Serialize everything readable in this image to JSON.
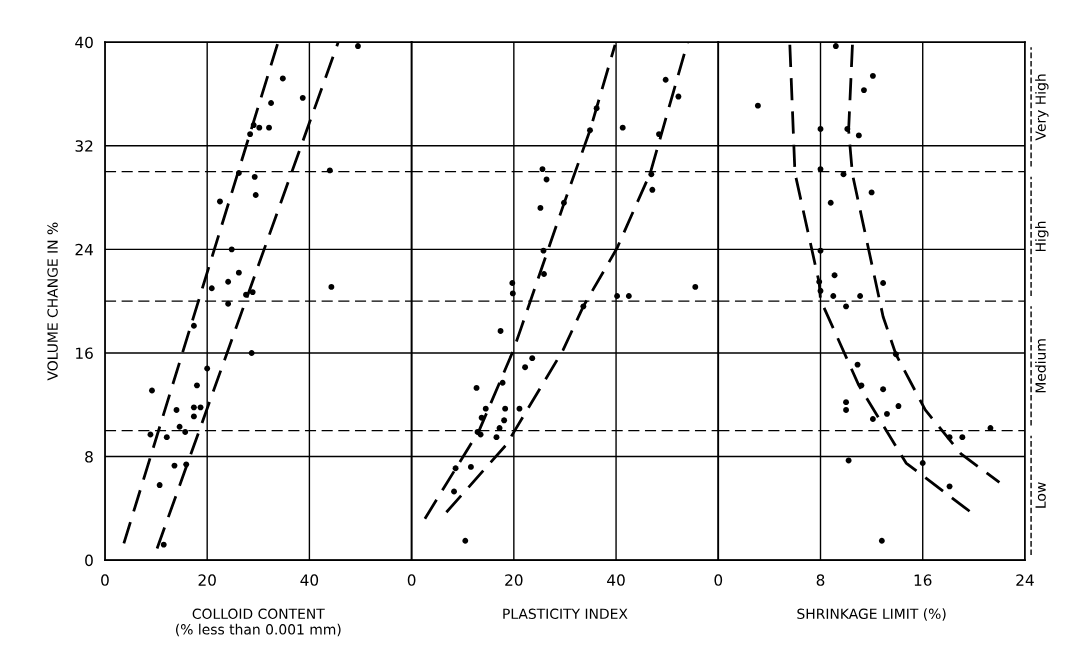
{
  "chart_data": [
    {
      "type": "scatter",
      "ylabel": "VOLUME CHANGE IN %",
      "xlabel": "COLLOID CONTENT\n(% less than 0.001 mm)",
      "xlim": [
        0,
        60
      ],
      "xticks": [
        0,
        20,
        40
      ],
      "ylim": [
        0,
        40
      ],
      "yticks": [
        0,
        8,
        16,
        24,
        32,
        40
      ],
      "grid": true,
      "marker": "circle",
      "ref_lines": [
        {
          "axis": "y",
          "value": 10,
          "line_style": "dashed",
          "color": "#000000"
        },
        {
          "axis": "y",
          "value": 20,
          "line_style": "dashed",
          "color": "#000000"
        },
        {
          "axis": "y",
          "value": 30,
          "line_style": "dashed",
          "color": "#000000"
        }
      ],
      "series": [
        {
          "color": "#000000",
          "x": [
            49.5,
            34.8,
            38.7,
            32.5,
            30.2,
            32.1,
            29.1,
            28.4,
            44.0,
            26.2,
            29.3,
            29.5,
            22.5,
            24.8,
            26.2,
            24.1,
            20.9,
            44.3,
            28.9,
            27.6,
            24.1,
            17.4,
            28.7,
            20.0,
            9.2,
            18.0,
            14.0,
            17.4,
            18.7,
            17.4,
            14.6,
            15.7,
            8.9,
            12.1,
            13.6,
            15.9,
            10.7,
            11.5
          ],
          "values": [
            39.7,
            37.2,
            35.7,
            35.3,
            33.4,
            33.4,
            33.6,
            32.9,
            30.1,
            29.9,
            29.6,
            28.2,
            27.7,
            24.0,
            22.2,
            21.5,
            21.0,
            21.1,
            20.7,
            20.5,
            19.8,
            18.1,
            16.0,
            14.8,
            13.1,
            13.5,
            11.6,
            11.8,
            11.8,
            11.1,
            10.3,
            9.9,
            9.7,
            9.5,
            7.3,
            7.4,
            5.8,
            1.2
          ]
        },
        {
          "type": "line",
          "color": "#000000",
          "line_style": "dashed",
          "marker": "none",
          "x": [
            3.7,
            33.8
          ],
          "values": [
            1.3,
            39.9
          ]
        },
        {
          "type": "line",
          "color": "#000000",
          "line_style": "dashed",
          "marker": "none",
          "x": [
            10.2,
            45.6
          ],
          "values": [
            0.9,
            39.95
          ]
        }
      ]
    },
    {
      "type": "scatter",
      "xlabel": "PLASTICITY INDEX",
      "xlim": [
        0,
        60
      ],
      "xticks": [
        0,
        20,
        40
      ],
      "ylim": [
        0,
        40
      ],
      "yticks": [
        0,
        8,
        16,
        24,
        32,
        40
      ],
      "grid": true,
      "marker": "circle",
      "tick_labels": "x",
      "ref_lines": [
        {
          "axis": "y",
          "value": 10,
          "line_style": "dashed",
          "color": "#000000"
        },
        {
          "axis": "y",
          "value": 20,
          "line_style": "dashed",
          "color": "#000000"
        },
        {
          "axis": "y",
          "value": 30,
          "line_style": "dashed",
          "color": "#000000"
        }
      ],
      "series": [
        {
          "color": "#000000",
          "x": [
            49.7,
            52.2,
            41.3,
            36.2,
            34.9,
            48.4,
            25.6,
            26.4,
            46.9,
            47.1,
            29.8,
            25.2,
            25.8,
            25.9,
            19.7,
            19.8,
            40.2,
            42.5,
            55.5,
            33.6,
            17.4,
            23.6,
            22.2,
            17.8,
            12.7,
            18.3,
            21.1,
            14.5,
            13.7,
            18.1,
            17.2,
            16.6,
            12.9,
            13.5,
            11.6,
            8.6,
            8.3,
            10.5
          ],
          "values": [
            37.1,
            35.8,
            33.4,
            34.9,
            33.2,
            32.9,
            30.2,
            29.4,
            29.8,
            28.6,
            27.6,
            27.2,
            23.9,
            22.1,
            21.4,
            20.6,
            20.4,
            20.4,
            21.1,
            19.6,
            17.7,
            15.6,
            14.9,
            13.7,
            13.3,
            11.7,
            11.7,
            11.7,
            11.0,
            10.8,
            10.2,
            9.5,
            9.9,
            9.7,
            7.2,
            7.1,
            5.3,
            1.5
          ]
        },
        {
          "type": "line",
          "color": "#000000",
          "line_style": "dashed",
          "marker": "none",
          "x": [
            2.6,
            13.2,
            19.9,
            21.4,
            29.6,
            34.9,
            39.8
          ],
          "values": [
            3.2,
            10.0,
            16.2,
            17.9,
            27.3,
            33.2,
            39.8
          ]
        },
        {
          "type": "line",
          "color": "#000000",
          "line_style": "dashed",
          "marker": "none",
          "x": [
            6.8,
            18.5,
            29.6,
            33.6,
            40.2,
            46.7,
            54.0
          ],
          "values": [
            3.7,
            8.9,
            16.2,
            19.6,
            24.1,
            29.9,
            40.0
          ]
        }
      ]
    },
    {
      "type": "scatter",
      "xlabel": "SHRINKAGE LIMIT (%)",
      "xlim": [
        0,
        24
      ],
      "xticks": [
        0,
        8,
        16,
        24
      ],
      "ylim": [
        0,
        40
      ],
      "yticks": [
        0,
        8,
        16,
        24,
        32,
        40
      ],
      "grid": true,
      "marker": "circle",
      "tick_labels": "x",
      "ref_lines": [
        {
          "axis": "y",
          "value": 10,
          "line_style": "dashed",
          "color": "#000000"
        },
        {
          "axis": "y",
          "value": 20,
          "line_style": "dashed",
          "color": "#000000"
        },
        {
          "axis": "y",
          "value": 30,
          "line_style": "dashed",
          "color": "#000000"
        }
      ],
      "annotations": [
        "Very High",
        "High",
        "Medium",
        "Low"
      ],
      "series": [
        {
          "color": "#000000",
          "x": [
            9.2,
            12.1,
            11.4,
            3.1,
            8.0,
            10.1,
            11.0,
            8.0,
            9.8,
            12.0,
            8.8,
            8.0,
            9.1,
            12.9,
            7.9,
            8.0,
            9.0,
            11.1,
            10.0,
            13.9,
            10.9,
            11.2,
            12.9,
            14.1,
            13.2,
            10.0,
            10.0,
            12.1,
            18.1,
            19.1,
            21.3,
            10.2,
            16.0,
            18.1,
            12.8
          ],
          "values": [
            39.7,
            37.4,
            36.3,
            35.1,
            33.3,
            33.3,
            32.8,
            30.2,
            29.8,
            28.4,
            27.6,
            23.9,
            22.0,
            21.4,
            21.5,
            20.8,
            20.4,
            20.4,
            19.6,
            15.9,
            15.1,
            13.5,
            13.2,
            11.9,
            11.3,
            12.2,
            11.6,
            10.9,
            9.5,
            9.5,
            10.2,
            7.7,
            7.5,
            5.7,
            1.5
          ]
        },
        {
          "type": "line",
          "color": "#000000",
          "line_style": "dashed",
          "marker": "none",
          "x": [
            5.6,
            6.0,
            7.9,
            8.0,
            11.0,
            14.7,
            19.9
          ],
          "values": [
            39.8,
            29.9,
            21.4,
            20.1,
            13.5,
            7.5,
            3.6
          ]
        },
        {
          "type": "line",
          "color": "#000000",
          "line_style": "dashed",
          "marker": "none",
          "x": [
            10.5,
            10.2,
            10.5,
            12.9,
            13.9,
            16.2,
            19.0,
            22.0
          ],
          "values": [
            39.8,
            33.2,
            29.8,
            18.8,
            15.9,
            11.6,
            8.2,
            6.0
          ]
        }
      ]
    }
  ]
}
